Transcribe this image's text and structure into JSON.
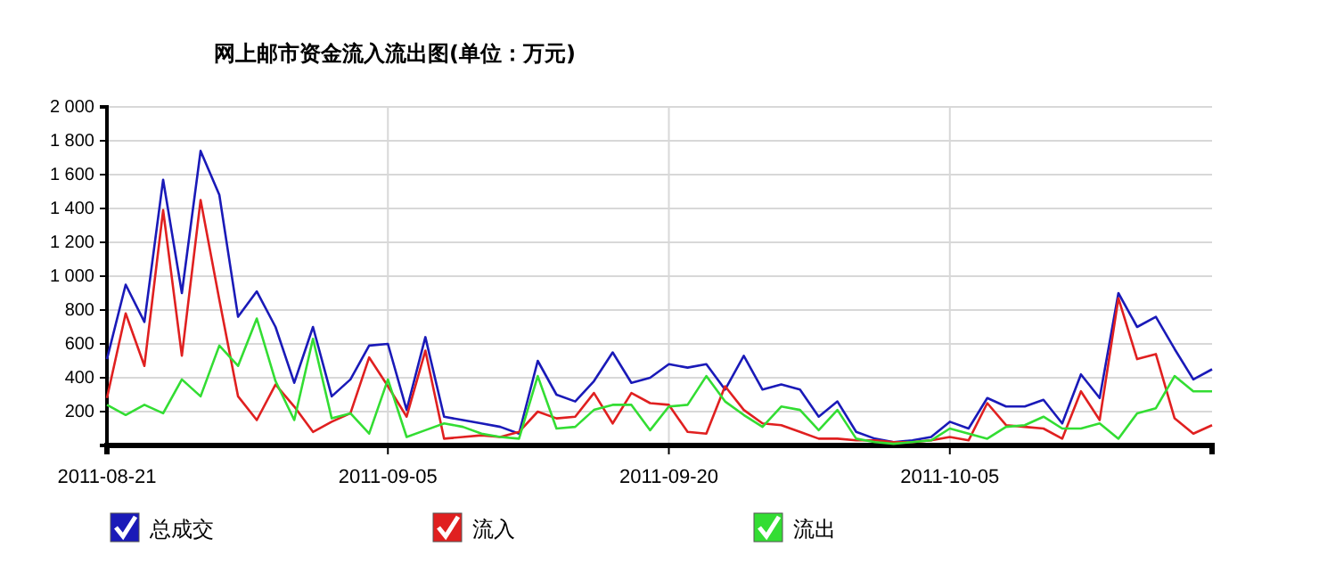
{
  "chart_data": {
    "type": "line",
    "title": "网上邮市资金流入流出图(单位：万元)",
    "x": [
      "2011-08-21",
      "2011-08-22",
      "2011-08-23",
      "2011-08-24",
      "2011-08-25",
      "2011-08-26",
      "2011-08-27",
      "2011-08-28",
      "2011-08-29",
      "2011-08-30",
      "2011-08-31",
      "2011-09-01",
      "2011-09-02",
      "2011-09-03",
      "2011-09-04",
      "2011-09-05",
      "2011-09-06",
      "2011-09-07",
      "2011-09-08",
      "2011-09-09",
      "2011-09-10",
      "2011-09-11",
      "2011-09-12",
      "2011-09-13",
      "2011-09-14",
      "2011-09-15",
      "2011-09-16",
      "2011-09-17",
      "2011-09-18",
      "2011-09-19",
      "2011-09-20",
      "2011-09-21",
      "2011-09-22",
      "2011-09-23",
      "2011-09-24",
      "2011-09-25",
      "2011-09-26",
      "2011-09-27",
      "2011-09-28",
      "2011-09-29",
      "2011-09-30",
      "2011-10-01",
      "2011-10-02",
      "2011-10-03",
      "2011-10-04",
      "2011-10-05",
      "2011-10-06",
      "2011-10-07",
      "2011-10-08",
      "2011-10-09",
      "2011-10-10",
      "2011-10-11",
      "2011-10-12",
      "2011-10-13",
      "2011-10-14",
      "2011-10-15",
      "2011-10-16",
      "2011-10-17",
      "2011-10-18",
      "2011-10-19"
    ],
    "series": [
      {
        "name": "总成交",
        "color": "#1a1ab8",
        "values": [
          510,
          950,
          730,
          1570,
          900,
          1740,
          1480,
          760,
          910,
          700,
          370,
          700,
          290,
          390,
          590,
          600,
          210,
          640,
          170,
          150,
          130,
          110,
          70,
          500,
          300,
          260,
          380,
          550,
          370,
          400,
          480,
          460,
          480,
          330,
          530,
          330,
          360,
          330,
          170,
          260,
          80,
          40,
          20,
          30,
          50,
          140,
          100,
          280,
          230,
          230,
          270,
          130,
          420,
          280,
          900,
          700,
          760,
          570,
          390,
          450
        ]
      },
      {
        "name": "流入",
        "color": "#e02020",
        "values": [
          280,
          780,
          470,
          1390,
          530,
          1450,
          860,
          290,
          150,
          360,
          230,
          80,
          140,
          190,
          520,
          350,
          170,
          560,
          40,
          50,
          60,
          50,
          80,
          200,
          160,
          170,
          310,
          130,
          310,
          250,
          240,
          80,
          70,
          350,
          210,
          130,
          120,
          80,
          40,
          40,
          30,
          30,
          20,
          20,
          30,
          50,
          30,
          250,
          120,
          110,
          100,
          40,
          320,
          150,
          870,
          510,
          540,
          160,
          70,
          120
        ]
      },
      {
        "name": "流出",
        "color": "#33dd33",
        "values": [
          240,
          180,
          240,
          190,
          390,
          290,
          590,
          470,
          750,
          380,
          150,
          630,
          160,
          190,
          70,
          390,
          50,
          90,
          130,
          110,
          70,
          50,
          40,
          410,
          100,
          110,
          210,
          240,
          240,
          90,
          230,
          240,
          410,
          260,
          180,
          110,
          230,
          210,
          90,
          210,
          40,
          20,
          10,
          20,
          30,
          100,
          70,
          40,
          110,
          120,
          170,
          100,
          100,
          130,
          40,
          190,
          220,
          410,
          320,
          320
        ]
      }
    ],
    "xlim": [
      "2011-08-21",
      "2011-10-19"
    ],
    "xticks": [
      "2011-08-21",
      "2011-09-05",
      "2011-09-20",
      "2011-10-05"
    ],
    "ylim": [
      0,
      2000
    ],
    "yticks": [
      {
        "value": 0,
        "label": null
      },
      200,
      400,
      600,
      800,
      {
        "value": 1000,
        "label": "1 000"
      },
      {
        "value": 1200,
        "label": "1 200"
      },
      {
        "value": 1400,
        "label": "1 400"
      },
      {
        "value": 1600,
        "label": "1 600"
      },
      {
        "value": 1800,
        "label": "1 800"
      },
      {
        "value": 2000,
        "label": "2 000"
      }
    ],
    "grid": true,
    "legend": "bottom",
    "marker": "none",
    "line_style": "solid"
  }
}
